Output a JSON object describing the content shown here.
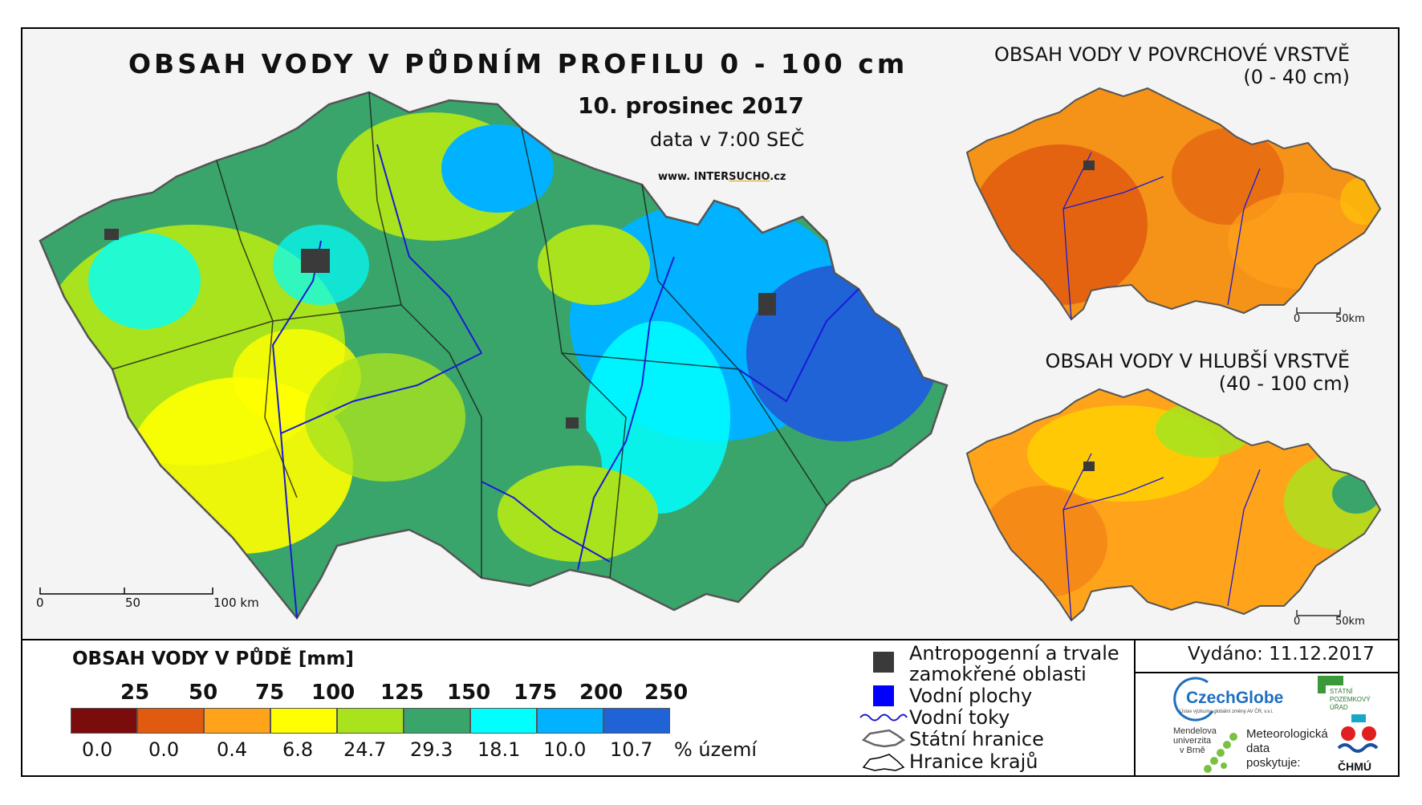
{
  "title": "OBSAH VODY V PŮDNÍM PROFILU 0 - 100 cm",
  "date": "10. prosinec 2017",
  "data_time": "data v 7:00 SEČ",
  "website": {
    "prefix": "www. INTER",
    "highlight": "SUCHO",
    "suffix": ".cz"
  },
  "inset_top": {
    "title_line1": "OBSAH VODY V POVRCHOVÉ VRSTVĚ",
    "title_line2": "(0 - 40 cm)",
    "scale_0": "0",
    "scale_end": "50km"
  },
  "inset_bottom": {
    "title_line1": "OBSAH VODY V HLUBŠÍ VRSTVĚ",
    "title_line2": "(40 - 100 cm)",
    "scale_0": "0",
    "scale_end": "50km"
  },
  "main_scale": {
    "t0": "0",
    "t1": "50",
    "t2": "100 km"
  },
  "legend": {
    "title": "OBSAH VODY V PŮDĚ [mm]",
    "breaks": [
      "25",
      "50",
      "75",
      "100",
      "125",
      "150",
      "175",
      "200",
      "250"
    ],
    "colors": [
      "#7a0c0c",
      "#e05a10",
      "#ffa31a",
      "#ffff00",
      "#a8e31e",
      "#3aa56a",
      "#00ffff",
      "#00b2ff",
      "#1f63d6"
    ],
    "percent": [
      "0.0",
      "0.0",
      "0.4",
      "6.8",
      "24.7",
      "29.3",
      "18.1",
      "10.0",
      "10.7"
    ],
    "percent_unit": "% území"
  },
  "symbols": {
    "anthropogenic_line1": "Antropogenní a trvale",
    "anthropogenic_line2": "zamokřené oblasti",
    "water_bodies": "Vodní plochy",
    "water_streams": "Vodní toky",
    "state_border": "Státní hranice",
    "region_border": "Hranice krajů"
  },
  "issued": "Vydáno: 11.12.2017",
  "logos": {
    "czechglobe": "CzechGlobe",
    "czechglobe_sub": "Ústav výzkumu globální změny AV ČR, v.v.i.",
    "spu_line1": "STÁTNÍ",
    "spu_line2": "POZEMKOVÝ",
    "spu_line3": "ÚŘAD",
    "mendel_line1": "Mendelova",
    "mendel_line2": "univerzita",
    "mendel_line3": "v Brně",
    "meteo_line1": "Meteorologická",
    "meteo_line2": "data",
    "meteo_line3": "poskytuje:",
    "chmu": "ČHMÚ"
  },
  "colors": {
    "stream": "#1a1ad6",
    "anthropogenic": "#3a3a3a",
    "water_body": "#0000ff"
  }
}
